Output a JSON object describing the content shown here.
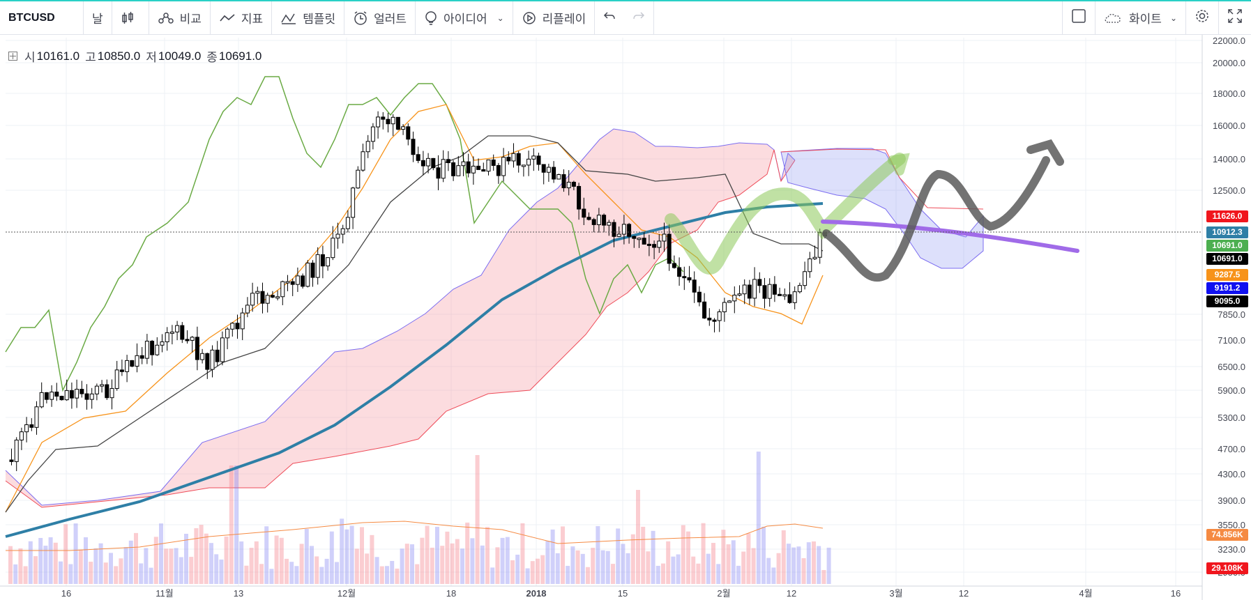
{
  "toolbar": {
    "symbol": "BTCUSD",
    "interval": "날",
    "compare": "비교",
    "indicators": "지표",
    "templates": "템플릿",
    "alerts": "얼러트",
    "ideas": "아이디어",
    "replay": "리플레이",
    "theme": "화이트",
    "icons": [
      "candles-icon",
      "compare-icon",
      "indicators-icon",
      "templates-icon",
      "alert-icon",
      "idea-icon",
      "replay-icon",
      "undo-icon",
      "redo-icon",
      "square-icon",
      "cloud-icon",
      "gear-icon",
      "fullscreen-icon"
    ]
  },
  "ohlc": {
    "open_label": "시",
    "open": "10161.0",
    "high_label": "고",
    "high": "10850.0",
    "low_label": "저",
    "low": "10049.0",
    "close_label": "종",
    "close": "10691.0"
  },
  "price_axis": [
    "22000.0",
    "20000.0",
    "18000.0",
    "16000.0",
    "14000.0",
    "12500.0",
    "7850.0",
    "7100.0",
    "6500.0",
    "5900.0",
    "5300.0",
    "4700.0",
    "4300.0",
    "3900.0",
    "3550.0",
    "3230.0",
    "2950.0"
  ],
  "time_axis": [
    "16",
    "11월",
    "13",
    "12월",
    "18",
    "2018",
    "15",
    "2월",
    "12",
    "3월",
    "12",
    "4월",
    "16"
  ],
  "price_tags": [
    {
      "value": "11626.0",
      "color": "#f0161d"
    },
    {
      "value": "10912.3",
      "color": "#2e7fa6"
    },
    {
      "value": "10691.0",
      "color": "#4caf50"
    },
    {
      "value": "10691.0",
      "color": "#000000"
    },
    {
      "value": "9287.5",
      "color": "#f7931a"
    },
    {
      "value": "9191.2",
      "color": "#1010f0"
    },
    {
      "value": "9095.0",
      "color": "#000000"
    },
    {
      "value": "74.856K",
      "color": "#f58a42"
    },
    {
      "value": "29.108K",
      "color": "#f0161d"
    }
  ],
  "chart_data": {
    "type": "line",
    "title": "",
    "series": [
      {
        "name": "",
        "x": [
          "16",
          "11월",
          "13",
          "12월",
          "18",
          "2018",
          "15",
          "2월",
          "12"
        ],
        "values": [
          5800,
          6500,
          6400,
          11000,
          19500,
          14500,
          11200,
          8800,
          10691
        ]
      }
    ],
    "ylim": [
      2950,
      22000
    ]
  }
}
